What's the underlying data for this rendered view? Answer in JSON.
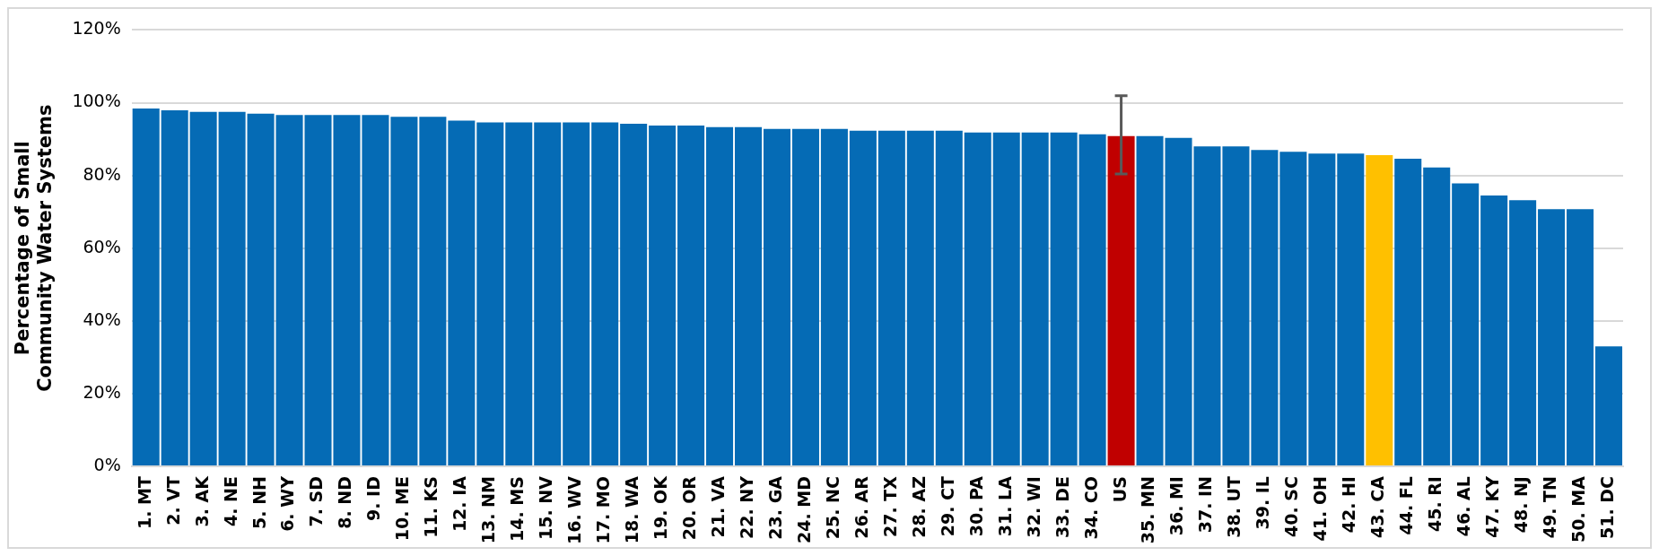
{
  "chart_data": {
    "type": "bar",
    "ylabel": "Percentage of Small Community Water Systems",
    "categories": [
      "1. MT",
      "2. VT",
      "3. AK",
      "4. NE",
      "5. NH",
      "6. WY",
      "7. SD",
      "8. ND",
      "9. ID",
      "10. ME",
      "11. KS",
      "12. IA",
      "13. NM",
      "14. MS",
      "15. NV",
      "16. WV",
      "17. MO",
      "18. WA",
      "19. OK",
      "20. OR",
      "21. VA",
      "22. NY",
      "23. GA",
      "24. MD",
      "25. NC",
      "26. AR",
      "27. TX",
      "28. AZ",
      "29. CT",
      "30. PA",
      "31. LA",
      "32. WI",
      "33. DE",
      "34. CO",
      "US",
      "35. MN",
      "36. MI",
      "37. IN",
      "38. UT",
      "39. IL",
      "40. SC",
      "41. OH",
      "42. HI",
      "43. CA",
      "44. FL",
      "45. RI",
      "46. AL",
      "47. KY",
      "48. NJ",
      "49. TN",
      "50. MA",
      "51. DC"
    ],
    "values": [
      98.4,
      97.9,
      97.5,
      97.5,
      97,
      96.6,
      96.6,
      96.6,
      96.6,
      96.1,
      96.1,
      95.1,
      94.6,
      94.6,
      94.6,
      94.6,
      94.6,
      94.2,
      93.7,
      93.7,
      93.3,
      93.3,
      92.8,
      92.8,
      92.8,
      92.3,
      92.3,
      92.3,
      92.3,
      91.8,
      91.8,
      91.8,
      91.8,
      91.3,
      90.8,
      90.8,
      90.3,
      88,
      88,
      87,
      86.5,
      86,
      86,
      85.6,
      84.6,
      82.2,
      77.8,
      74.5,
      73.2,
      70.7,
      70.7,
      33
    ],
    "colors": [
      "#056bb5",
      "#056bb5",
      "#056bb5",
      "#056bb5",
      "#056bb5",
      "#056bb5",
      "#056bb5",
      "#056bb5",
      "#056bb5",
      "#056bb5",
      "#056bb5",
      "#056bb5",
      "#056bb5",
      "#056bb5",
      "#056bb5",
      "#056bb5",
      "#056bb5",
      "#056bb5",
      "#056bb5",
      "#056bb5",
      "#056bb5",
      "#056bb5",
      "#056bb5",
      "#056bb5",
      "#056bb5",
      "#056bb5",
      "#056bb5",
      "#056bb5",
      "#056bb5",
      "#056bb5",
      "#056bb5",
      "#056bb5",
      "#056bb5",
      "#056bb5",
      "#c00000",
      "#056bb5",
      "#056bb5",
      "#056bb5",
      "#056bb5",
      "#056bb5",
      "#056bb5",
      "#056bb5",
      "#056bb5",
      "#ffc000",
      "#056bb5",
      "#056bb5",
      "#056bb5",
      "#056bb5",
      "#056bb5",
      "#056bb5",
      "#056bb5",
      "#056bb5"
    ],
    "errors": [
      null,
      null,
      null,
      null,
      null,
      null,
      null,
      null,
      null,
      null,
      null,
      null,
      null,
      null,
      null,
      null,
      null,
      null,
      null,
      null,
      null,
      null,
      null,
      null,
      null,
      null,
      null,
      null,
      null,
      null,
      null,
      null,
      null,
      null,
      [
        80.4,
        101.9
      ],
      null,
      null,
      null,
      null,
      null,
      null,
      null,
      null,
      null,
      null,
      null,
      null,
      null,
      null,
      null,
      null,
      null
    ],
    "ylim": [
      0,
      120
    ],
    "yticks": [
      {
        "value": 0,
        "label": "0%"
      },
      {
        "value": 20,
        "label": "20%"
      },
      {
        "value": 40,
        "label": "40%"
      },
      {
        "value": 60,
        "label": "60%"
      },
      {
        "value": 80,
        "label": "80%"
      },
      {
        "value": 100,
        "label": "100%"
      },
      {
        "value": 120,
        "label": "120%"
      }
    ],
    "grid": "y",
    "legend": false
  }
}
